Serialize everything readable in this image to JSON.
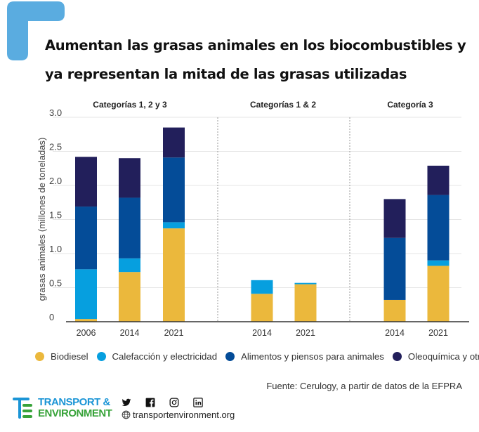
{
  "title": {
    "line1": "Aumentan las grasas animales en los biocombustibles y",
    "line2": "ya representan la mitad de las grasas utilizadas"
  },
  "colors": {
    "accent": "#5aace0",
    "biodiesel": "#ebb83c",
    "calefaccion": "#069fdf",
    "alimentos": "#044c98",
    "oleoquimica": "#221f5b"
  },
  "chart_data": {
    "type": "bar",
    "stacked": true,
    "title": "Aumentan las grasas animales en los biocombustibles y ya representan la mitad de las grasas utilizadas",
    "xlabel": "",
    "ylabel": "grasas animales (millones de toneladas)",
    "ylim": [
      0,
      3.0
    ],
    "yticks": [
      0,
      0.5,
      1.0,
      1.5,
      2.0,
      2.5,
      3.0
    ],
    "ytick_labels": [
      "0",
      "0.5",
      "1.0",
      "1.5",
      "2.0",
      "2.5",
      "3.0"
    ],
    "grid": true,
    "legend_position": "bottom",
    "panels": [
      {
        "title": "Categorías 1, 2 y 3",
        "categories": [
          "2006",
          "2014",
          "2021"
        ],
        "series": [
          {
            "name": "Biodiesel",
            "values": [
              0.04,
              0.73,
              1.37
            ]
          },
          {
            "name": "Calefacción y electricidad",
            "values": [
              0.73,
              0.2,
              0.09
            ]
          },
          {
            "name": "Alimentos y piensos para animales",
            "values": [
              0.92,
              0.89,
              0.95
            ]
          },
          {
            "name": "Oleoquímica y otros",
            "values": [
              0.73,
              0.58,
              0.44
            ]
          }
        ]
      },
      {
        "title": "Categorías 1 & 2",
        "categories": [
          "2014",
          "2021"
        ],
        "series": [
          {
            "name": "Biodiesel",
            "values": [
              0.41,
              0.55
            ]
          },
          {
            "name": "Calefacción y electricidad",
            "values": [
              0.2,
              0.02
            ]
          },
          {
            "name": "Alimentos y piensos para animales",
            "values": [
              0,
              0
            ]
          },
          {
            "name": "Oleoquímica y otros",
            "values": [
              0,
              0
            ]
          }
        ]
      },
      {
        "title": "Categoría 3",
        "categories": [
          "2014",
          "2021"
        ],
        "series": [
          {
            "name": "Biodiesel",
            "values": [
              0.32,
              0.82
            ]
          },
          {
            "name": "Calefacción y electricidad",
            "values": [
              0,
              0.08
            ]
          },
          {
            "name": "Alimentos y piensos para animales",
            "values": [
              0.91,
              0.96
            ]
          },
          {
            "name": "Oleoquímica y otros",
            "values": [
              0.57,
              0.43
            ]
          }
        ]
      }
    ]
  },
  "legend": [
    {
      "label": "Biodiesel",
      "color": "#ebb83c"
    },
    {
      "label": "Calefacción y electricidad",
      "color": "#069fdf"
    },
    {
      "label": "Alimentos y piensos para animales",
      "color": "#044c98"
    },
    {
      "label": "Oleoquímica y otros",
      "color": "#221f5b"
    }
  ],
  "source": "Fuente: Cerulogy, a partir de datos de la EFPRA",
  "footer": {
    "brand_line1": "TRANSPORT &",
    "brand_line2": "ENVIRONMENT",
    "social_icons": [
      "twitter-icon",
      "facebook-icon",
      "instagram-icon",
      "linkedin-icon"
    ],
    "website": "transportenvironment.org"
  }
}
